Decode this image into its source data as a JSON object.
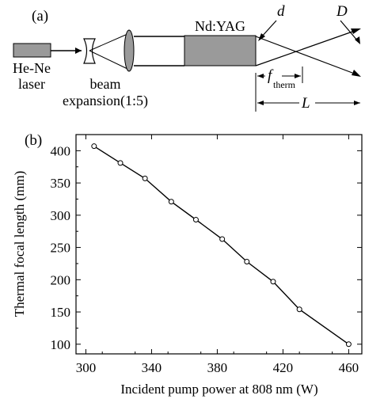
{
  "panel_a": {
    "label": "(a)",
    "laser_label_line1": "He-Ne",
    "laser_label_line2": "laser",
    "expansion_label_line1": "beam",
    "expansion_label_line2": "expansion(1:5)",
    "crystal_label": "Nd:YAG",
    "d_label": "d",
    "D_label": "D",
    "f_label": "f",
    "f_subscript": "therm",
    "L_label": "L"
  },
  "chart_data": {
    "type": "line",
    "panel_label": "(b)",
    "xlabel": "Incident pump power at 808 nm (W)",
    "ylabel": "Thermal focal length (mm)",
    "xlim": [
      294,
      468
    ],
    "ylim": [
      85,
      425
    ],
    "xticks": [
      300,
      340,
      380,
      420,
      460
    ],
    "yticks": [
      100,
      150,
      200,
      250,
      300,
      350,
      400
    ],
    "x": [
      305,
      321,
      336,
      352,
      367,
      383,
      398,
      414,
      430,
      460
    ],
    "y": [
      407,
      381,
      357,
      321,
      293,
      263,
      228,
      197,
      154,
      100
    ],
    "marker": "open-circle",
    "grid": false
  }
}
